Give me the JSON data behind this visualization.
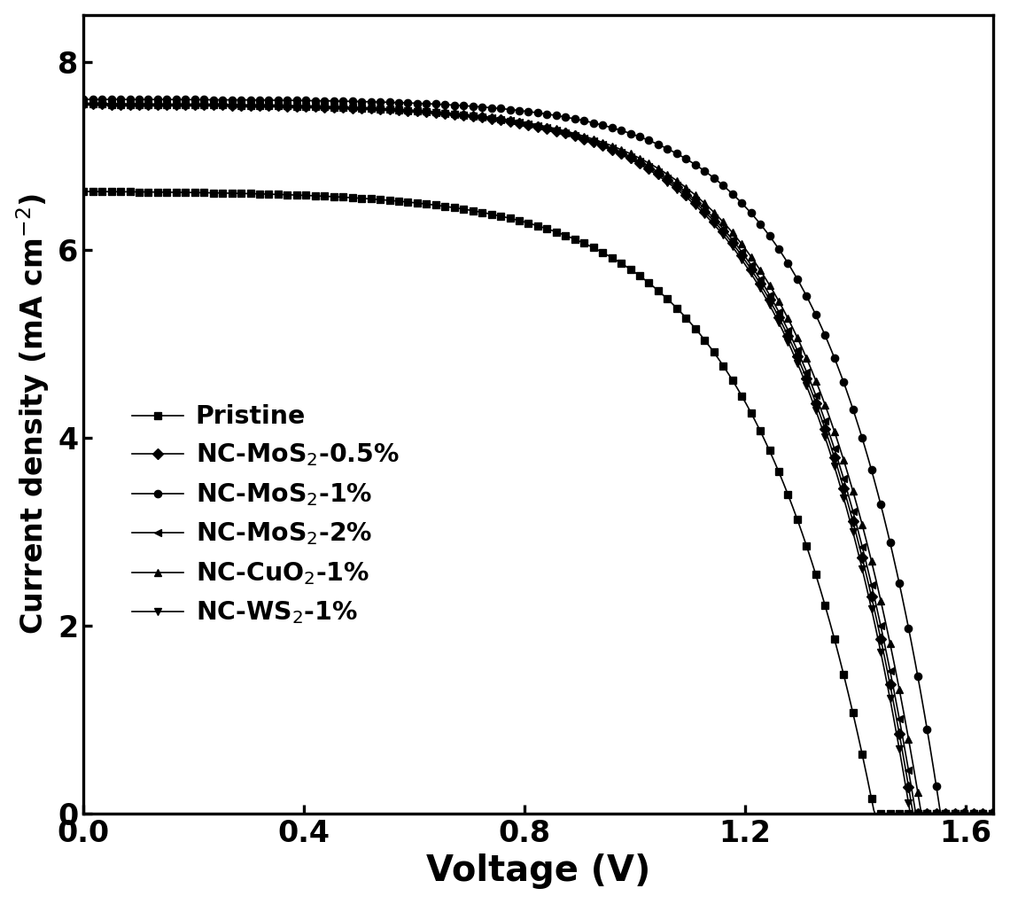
{
  "title": "",
  "xlabel": "Voltage (V)",
  "ylabel": "Current density (mA cm$^{-2}$)",
  "xlim": [
    0.0,
    1.65
  ],
  "ylim": [
    0.0,
    8.5
  ],
  "xticks": [
    0.0,
    0.4,
    0.8,
    1.2,
    1.6
  ],
  "yticks": [
    0,
    2,
    4,
    6,
    8
  ],
  "background_color": "#ffffff",
  "series": [
    {
      "label": "Pristine",
      "marker": "s",
      "color": "#000000",
      "Jsc": 6.62,
      "Voc": 1.435,
      "n": 8.0,
      "Rs": 2.5
    },
    {
      "label": "NC-MoS$_2$-0.5%",
      "marker": "D",
      "color": "#000000",
      "Jsc": 7.55,
      "Voc": 1.505,
      "n": 7.5,
      "Rs": 2.0
    },
    {
      "label": "NC-MoS$_2$-1%",
      "marker": "o",
      "color": "#000000",
      "Jsc": 7.6,
      "Voc": 1.555,
      "n": 7.0,
      "Rs": 1.8
    },
    {
      "label": "NC-MoS$_2$-2%",
      "marker": "<",
      "color": "#000000",
      "Jsc": 7.55,
      "Voc": 1.51,
      "n": 7.5,
      "Rs": 2.0
    },
    {
      "label": "NC-CuO$_2$-1%",
      "marker": "^",
      "color": "#000000",
      "Jsc": 7.55,
      "Voc": 1.52,
      "n": 7.5,
      "Rs": 1.9
    },
    {
      "label": "NC-WS$_2$-1%",
      "marker": "v",
      "color": "#000000",
      "Jsc": 7.55,
      "Voc": 1.5,
      "n": 7.5,
      "Rs": 2.0
    }
  ],
  "markersize": 5,
  "markevery": 8,
  "linewidth": 1.0,
  "figsize": [
    9.5,
    8.5
  ],
  "dpi": 120
}
